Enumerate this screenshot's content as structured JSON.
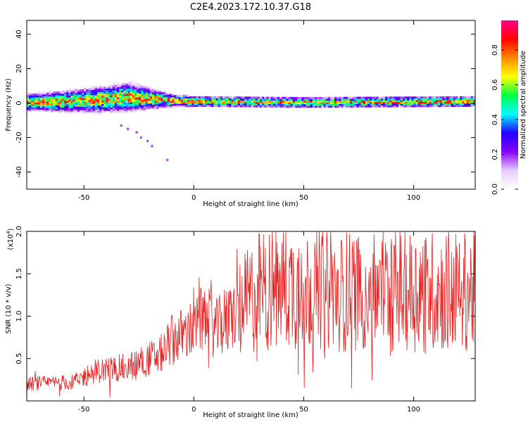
{
  "title": "C2E4.2023.172.10.37.G18",
  "chart_data": [
    {
      "type": "heatmap",
      "xlabel": "Height of straight line (km)",
      "ylabel": "Frequency (Hz)",
      "xlim": [
        -76,
        128
      ],
      "ylim": [
        -50,
        48
      ],
      "xticks": [
        -50,
        0,
        50,
        100
      ],
      "yticks": [
        -40,
        -20,
        0,
        20,
        40
      ],
      "colorbar": {
        "label": "Normalized spectral amplitude",
        "range": [
          0,
          0.97
        ],
        "ticks": [
          "0.0",
          "0.2",
          "0.4",
          "0.6",
          "0.8"
        ],
        "colors": [
          "#ffffff",
          "#e6ccff",
          "#8800ff",
          "#2200ff",
          "#00ffff",
          "#00ff44",
          "#ffff00",
          "#ff8800",
          "#ff0000",
          "#ff0088"
        ]
      },
      "ridge": [
        {
          "x": -76,
          "center": 0.0,
          "half_width": 4
        },
        {
          "x": -60,
          "center": 0.5,
          "half_width": 5
        },
        {
          "x": -45,
          "center": 1.5,
          "half_width": 6
        },
        {
          "x": -30,
          "center": 3.0,
          "half_width": 7
        },
        {
          "x": -20,
          "center": 2.0,
          "half_width": 5
        },
        {
          "x": -10,
          "center": 1.0,
          "half_width": 3
        },
        {
          "x": 0,
          "center": 0.5,
          "half_width": 2.5
        },
        {
          "x": 50,
          "center": 0.0,
          "half_width": 2.5
        },
        {
          "x": 128,
          "center": 0.5,
          "half_width": 2.5
        }
      ],
      "outliers": [
        {
          "x": -26,
          "y": -17
        },
        {
          "x": -24,
          "y": -20
        },
        {
          "x": -21,
          "y": -22
        },
        {
          "x": -19,
          "y": -25
        },
        {
          "x": -12,
          "y": -33
        },
        {
          "x": -33,
          "y": -13
        },
        {
          "x": -30,
          "y": -15
        }
      ]
    },
    {
      "type": "line",
      "xlabel": "Height of straight line (km)",
      "ylabel": "SNR (10 * v/v)",
      "yscale_label": "(x10",
      "yscale_exp": "4",
      "xlim": [
        -76,
        128
      ],
      "ylim": [
        0,
        2.0
      ],
      "xticks": [
        -50,
        0,
        50,
        100
      ],
      "yticks": [
        "0.5",
        "1.0",
        "1.5",
        "2.0"
      ],
      "color": "#e82020",
      "trend": [
        {
          "x": -76,
          "y": 0.2
        },
        {
          "x": -55,
          "y": 0.22
        },
        {
          "x": -45,
          "y": 0.35
        },
        {
          "x": -30,
          "y": 0.4
        },
        {
          "x": -15,
          "y": 0.55
        },
        {
          "x": -10,
          "y": 0.72
        },
        {
          "x": 0,
          "y": 0.85
        },
        {
          "x": 5,
          "y": 1.0
        },
        {
          "x": 10,
          "y": 0.85
        },
        {
          "x": 20,
          "y": 1.05
        },
        {
          "x": 30,
          "y": 1.3
        },
        {
          "x": 40,
          "y": 1.35
        },
        {
          "x": 60,
          "y": 1.3
        },
        {
          "x": 80,
          "y": 1.3
        },
        {
          "x": 100,
          "y": 1.3
        },
        {
          "x": 128,
          "y": 1.3
        }
      ]
    }
  ]
}
